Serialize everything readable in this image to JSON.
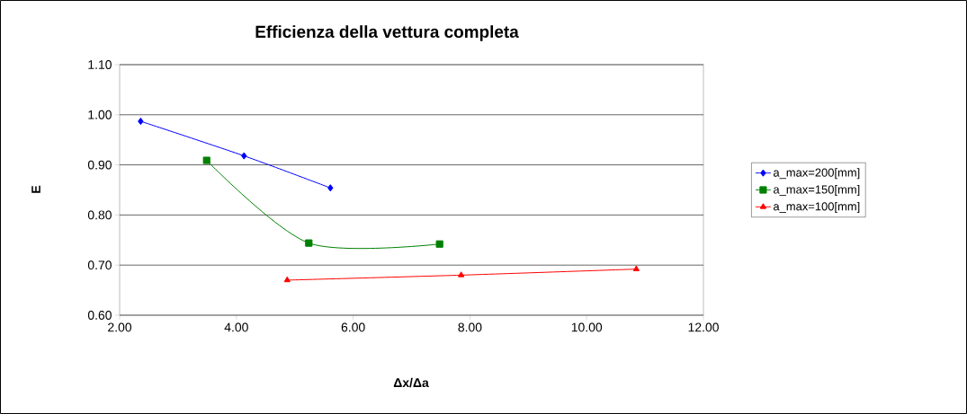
{
  "chart_data": {
    "type": "line",
    "title": "Efficienza della vettura completa",
    "xlabel": "Δx/Δa",
    "ylabel": "E",
    "xlim": [
      2,
      12
    ],
    "xticks": [
      {
        "value": 2,
        "label": "2.00"
      },
      {
        "value": 4,
        "label": "4.00"
      },
      {
        "value": 6,
        "label": "6.00"
      },
      {
        "value": 8,
        "label": "8.00"
      },
      {
        "value": 10,
        "label": "10.00"
      },
      {
        "value": 12,
        "label": "12.00"
      }
    ],
    "ylim": [
      0.6,
      1.1
    ],
    "yticks": [
      {
        "value": 0.6,
        "label": "0.60"
      },
      {
        "value": 0.7,
        "label": "0.70"
      },
      {
        "value": 0.8,
        "label": "0.80"
      },
      {
        "value": 0.9,
        "label": "0.90"
      },
      {
        "value": 1.0,
        "label": "1.00"
      },
      {
        "value": 1.1,
        "label": "1.10"
      }
    ],
    "grid": "y",
    "legend": "right",
    "line_style": "solid",
    "series": [
      {
        "name": "a_max=200[mm]",
        "color": "#0000ff",
        "marker": "diamond",
        "x": [
          2.36,
          4.13,
          5.61
        ],
        "values": [
          0.987,
          0.918,
          0.854
        ]
      },
      {
        "name": "a_max=150[mm]",
        "color": "#008000",
        "marker": "square",
        "x": [
          3.49,
          5.24,
          7.48
        ],
        "values": [
          0.909,
          0.744,
          0.742
        ]
      },
      {
        "name": "a_max=100[mm]",
        "color": "#ff0000",
        "marker": "triangle",
        "x": [
          4.87,
          7.85,
          10.85
        ],
        "values": [
          0.67,
          0.68,
          0.692
        ]
      }
    ]
  }
}
